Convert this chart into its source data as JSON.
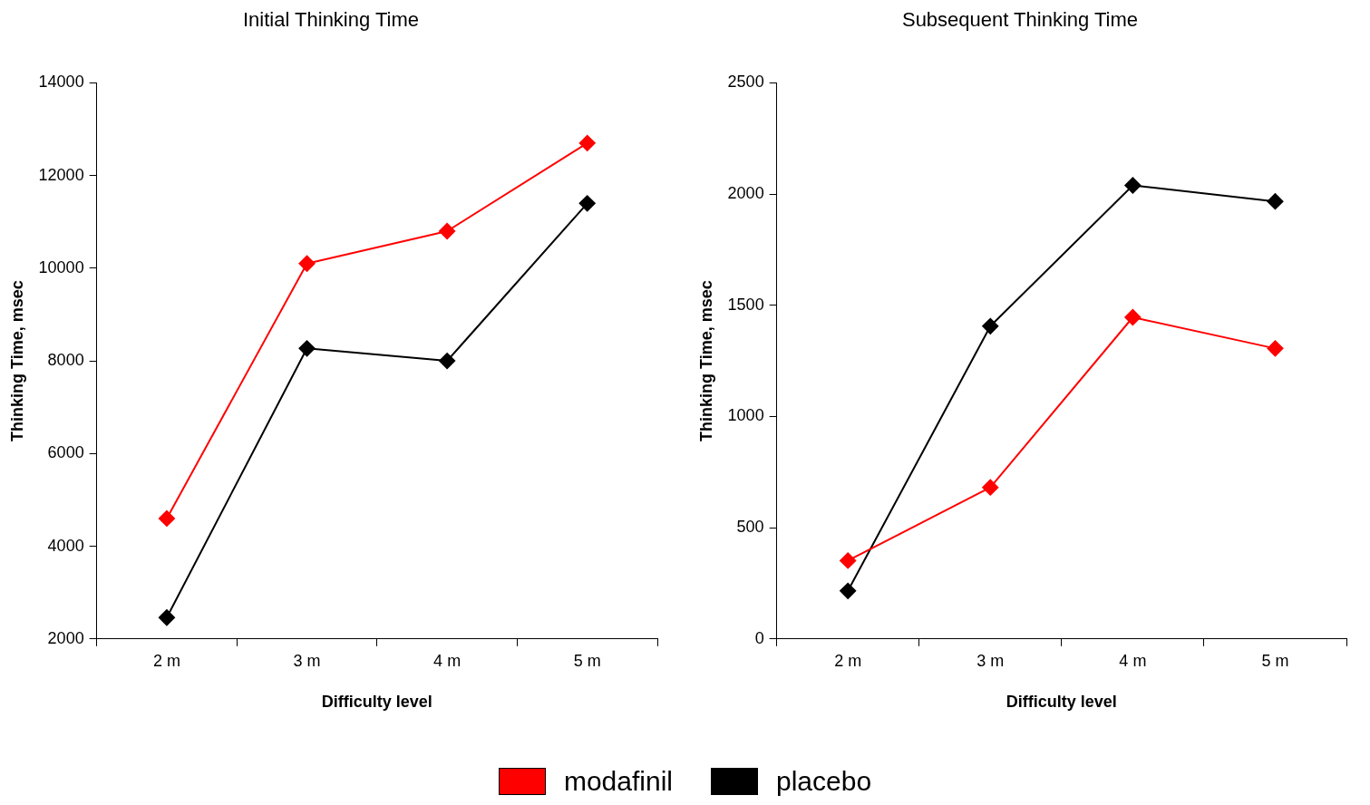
{
  "chart_data": [
    {
      "type": "line",
      "title": "Initial Thinking Time",
      "xlabel": "Difficulty level",
      "ylabel": "Thinking Time, msec",
      "categories": [
        "2 m",
        "3 m",
        "4 m",
        "5 m"
      ],
      "ylim": [
        2000,
        14000
      ],
      "yticks": [
        2000,
        4000,
        6000,
        8000,
        10000,
        12000,
        14000
      ],
      "grid": false,
      "marker": "diamond",
      "legend": "bottom",
      "series": [
        {
          "name": "modafinil",
          "color": "#ff0000",
          "values": [
            4600,
            10100,
            10800,
            12700
          ]
        },
        {
          "name": "placebo",
          "color": "#000000",
          "values": [
            2460,
            8270,
            8000,
            11400
          ]
        }
      ]
    },
    {
      "type": "line",
      "title": "Subsequent Thinking Time",
      "xlabel": "Difficulty level",
      "ylabel": "Thinking Time, msec",
      "categories": [
        "2 m",
        "3 m",
        "4 m",
        "5 m"
      ],
      "ylim": [
        0,
        2500
      ],
      "yticks": [
        0,
        500,
        1000,
        1500,
        2000,
        2500
      ],
      "grid": false,
      "marker": "diamond",
      "legend": "bottom",
      "series": [
        {
          "name": "modafinil",
          "color": "#ff0000",
          "values": [
            352,
            681,
            1446,
            1306
          ]
        },
        {
          "name": "placebo",
          "color": "#000000",
          "values": [
            216,
            1406,
            2039,
            1967
          ]
        }
      ]
    }
  ]
}
